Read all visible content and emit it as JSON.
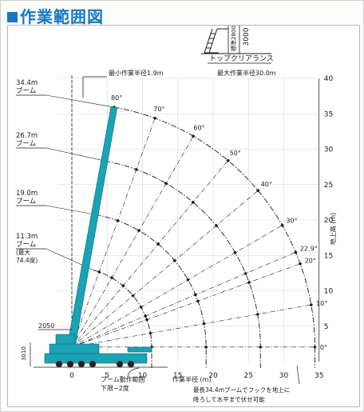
{
  "title": "作業範囲図",
  "colors": {
    "title": "#1677c4",
    "crane": "#19a3b5",
    "ink": "#1a1a1a",
    "grid": "#cfd8e2"
  },
  "top_clearance": {
    "label": "トップクリアランス",
    "dim_inner": "標準2800",
    "dim_outer": "3000"
  },
  "notes": {
    "min_radius": "最小作業半径1.9m",
    "max_radius": "最大作業半径30.0m",
    "boom_swing": [
      "ブーム動作範囲",
      "下限−2度"
    ],
    "bottom_note": [
      "最長34.4mブームでフックを地上に",
      "降ろして水平まで伏せ可能"
    ],
    "dim_2050": "2050",
    "dim_3010": "3010"
  },
  "icons": [
    "crane-icon",
    "ladder-icon",
    "hook-icon"
  ],
  "chart_data": {
    "type": "working-range",
    "xlabel": "作業半径 (m)",
    "ylabel": "地上高 (m)",
    "x_ticks": [
      0,
      5,
      10,
      15,
      20,
      25,
      30,
      35
    ],
    "y_ticks": [
      5,
      10,
      15,
      20,
      25,
      30,
      35,
      40
    ],
    "xlim": [
      -2,
      35
    ],
    "ylim": [
      0,
      40
    ],
    "pivot": [
      0,
      2.05
    ],
    "grid": true,
    "angles": [
      {
        "label": "80°",
        "deg": 80
      },
      {
        "label": "70°",
        "deg": 70
      },
      {
        "label": "60°",
        "deg": 60
      },
      {
        "label": "50°",
        "deg": 50
      },
      {
        "label": "40°",
        "deg": 40
      },
      {
        "label": "30°",
        "deg": 30
      },
      {
        "label": "22.9°",
        "deg": 22.9
      },
      {
        "label": "20°",
        "deg": 20
      },
      {
        "label": "10°",
        "deg": 10
      },
      {
        "label": "0°",
        "deg": 0
      }
    ],
    "booms": [
      {
        "lines": [
          "34.4m",
          "ブーム"
        ],
        "length": 34.4
      },
      {
        "lines": [
          "26.7m",
          "ブーム"
        ],
        "length": 26.7
      },
      {
        "lines": [
          "19.0m",
          "ブーム"
        ],
        "length": 19.0
      },
      {
        "lines": [
          "11.3m",
          "ブーム",
          "(最大",
          "74.4度)"
        ],
        "length": 11.3
      }
    ]
  }
}
